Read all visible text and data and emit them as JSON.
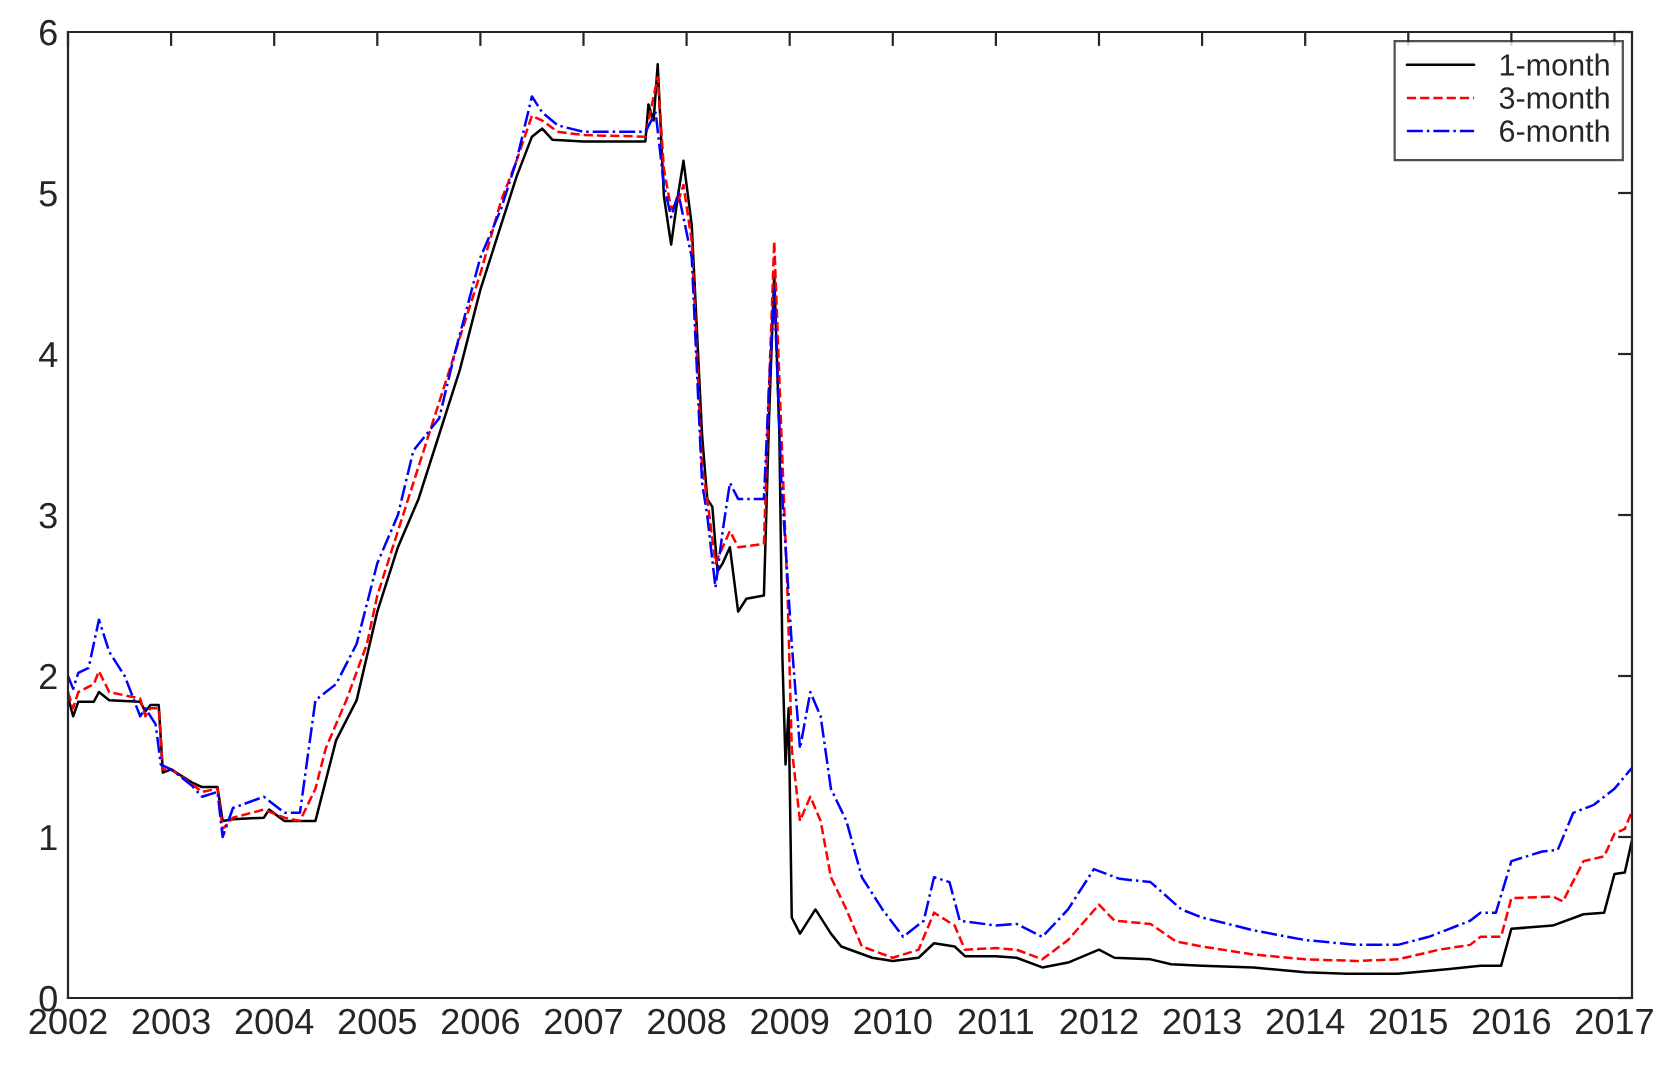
{
  "chart_data": {
    "type": "line",
    "xlim": [
      2002,
      2017.17
    ],
    "xticks": [
      2002,
      2003,
      2004,
      2005,
      2006,
      2007,
      2008,
      2009,
      2010,
      2011,
      2012,
      2013,
      2014,
      2015,
      2016,
      2017
    ],
    "ylim": [
      0,
      6
    ],
    "yticks": [
      0,
      1,
      2,
      3,
      4,
      5,
      6
    ],
    "grid": false,
    "legend": "top right",
    "marker": "none",
    "series": [
      {
        "name": "1-month",
        "color": "#000000",
        "line_style": "solid",
        "x": [
          2002.0,
          2002.05,
          2002.1,
          2002.25,
          2002.3,
          2002.4,
          2002.7,
          2002.75,
          2002.8,
          2002.88,
          2002.92,
          2003.0,
          2003.2,
          2003.3,
          2003.45,
          2003.5,
          2003.6,
          2003.9,
          2003.95,
          2004.1,
          2004.4,
          2004.5,
          2004.6,
          2004.8,
          2005.0,
          2005.2,
          2005.4,
          2005.6,
          2005.8,
          2006.0,
          2006.2,
          2006.35,
          2006.5,
          2006.6,
          2006.7,
          2007.0,
          2007.6,
          2007.63,
          2007.68,
          2007.72,
          2007.78,
          2007.85,
          2007.92,
          2007.97,
          2008.05,
          2008.15,
          2008.2,
          2008.25,
          2008.3,
          2008.35,
          2008.42,
          2008.5,
          2008.58,
          2008.75,
          2008.8,
          2008.85,
          2008.9,
          2008.93,
          2008.96,
          2008.99,
          2009.02,
          2009.1,
          2009.25,
          2009.4,
          2009.5,
          2009.8,
          2010.0,
          2010.25,
          2010.4,
          2010.6,
          2010.7,
          2011.0,
          2011.2,
          2011.45,
          2011.7,
          2012.0,
          2012.15,
          2012.5,
          2012.7,
          2013.0,
          2013.5,
          2014.0,
          2014.4,
          2014.9,
          2015.4,
          2015.7,
          2015.9,
          2016.0,
          2016.4,
          2016.7,
          2016.9,
          2017.0,
          2017.1,
          2017.17
        ],
        "values": [
          1.87,
          1.75,
          1.84,
          1.84,
          1.9,
          1.85,
          1.84,
          1.78,
          1.82,
          1.82,
          1.4,
          1.42,
          1.34,
          1.31,
          1.31,
          1.1,
          1.11,
          1.12,
          1.17,
          1.1,
          1.1,
          1.35,
          1.6,
          1.85,
          2.4,
          2.8,
          3.1,
          3.5,
          3.9,
          4.4,
          4.8,
          5.1,
          5.35,
          5.4,
          5.33,
          5.32,
          5.32,
          5.55,
          5.45,
          5.8,
          4.98,
          4.68,
          5.0,
          5.2,
          4.8,
          3.5,
          3.1,
          3.05,
          2.65,
          2.7,
          2.8,
          2.4,
          2.48,
          2.5,
          3.6,
          4.5,
          3.5,
          2.1,
          1.45,
          1.8,
          0.5,
          0.4,
          0.55,
          0.4,
          0.32,
          0.25,
          0.23,
          0.25,
          0.34,
          0.32,
          0.26,
          0.26,
          0.25,
          0.19,
          0.22,
          0.3,
          0.25,
          0.24,
          0.21,
          0.2,
          0.19,
          0.16,
          0.15,
          0.15,
          0.18,
          0.2,
          0.2,
          0.43,
          0.45,
          0.52,
          0.53,
          0.77,
          0.78,
          0.98
        ]
      },
      {
        "name": "3-month",
        "color": "#ff0000",
        "line_style": "dashed",
        "x": [
          2002.0,
          2002.05,
          2002.1,
          2002.25,
          2002.3,
          2002.4,
          2002.7,
          2002.75,
          2002.8,
          2002.88,
          2002.92,
          2003.0,
          2003.2,
          2003.3,
          2003.45,
          2003.5,
          2003.6,
          2003.9,
          2004.1,
          2004.25,
          2004.4,
          2004.5,
          2004.7,
          2004.9,
          2005.0,
          2005.2,
          2005.4,
          2005.6,
          2005.8,
          2006.0,
          2006.2,
          2006.35,
          2006.5,
          2006.6,
          2006.75,
          2007.0,
          2007.6,
          2007.68,
          2007.72,
          2007.78,
          2007.85,
          2007.92,
          2007.97,
          2008.05,
          2008.15,
          2008.2,
          2008.28,
          2008.35,
          2008.42,
          2008.5,
          2008.75,
          2008.8,
          2008.85,
          2008.92,
          2008.98,
          2009.02,
          2009.1,
          2009.2,
          2009.3,
          2009.4,
          2009.55,
          2009.7,
          2010.0,
          2010.25,
          2010.4,
          2010.6,
          2010.7,
          2011.0,
          2011.2,
          2011.45,
          2011.7,
          2012.0,
          2012.15,
          2012.5,
          2012.75,
          2013.0,
          2013.5,
          2014.0,
          2014.5,
          2014.9,
          2015.3,
          2015.6,
          2015.7,
          2015.9,
          2016.0,
          2016.4,
          2016.5,
          2016.7,
          2016.9,
          2017.0,
          2017.1,
          2017.17
        ],
        "values": [
          1.9,
          1.8,
          1.9,
          1.95,
          2.03,
          1.9,
          1.86,
          1.75,
          1.8,
          1.8,
          1.42,
          1.42,
          1.33,
          1.28,
          1.3,
          1.05,
          1.12,
          1.17,
          1.12,
          1.1,
          1.3,
          1.55,
          1.85,
          2.2,
          2.5,
          2.9,
          3.3,
          3.7,
          4.1,
          4.5,
          4.95,
          5.2,
          5.48,
          5.45,
          5.38,
          5.36,
          5.35,
          5.6,
          5.72,
          5.15,
          4.9,
          4.95,
          5.05,
          4.7,
          3.3,
          3.1,
          2.7,
          2.8,
          2.9,
          2.8,
          2.82,
          3.8,
          4.7,
          3.5,
          2.5,
          1.55,
          1.1,
          1.25,
          1.1,
          0.75,
          0.55,
          0.32,
          0.25,
          0.3,
          0.53,
          0.45,
          0.3,
          0.31,
          0.3,
          0.24,
          0.36,
          0.58,
          0.48,
          0.46,
          0.35,
          0.32,
          0.27,
          0.24,
          0.23,
          0.24,
          0.3,
          0.33,
          0.38,
          0.38,
          0.62,
          0.63,
          0.6,
          0.85,
          0.88,
          1.02,
          1.05,
          1.16
        ]
      },
      {
        "name": "6-month",
        "color": "#0000ff",
        "line_style": "dashdot",
        "x": [
          2002.0,
          2002.05,
          2002.1,
          2002.2,
          2002.3,
          2002.4,
          2002.55,
          2002.7,
          2002.75,
          2002.85,
          2002.9,
          2003.0,
          2003.2,
          2003.3,
          2003.45,
          2003.5,
          2003.6,
          2003.9,
          2004.1,
          2004.25,
          2004.4,
          2004.6,
          2004.8,
          2005.0,
          2005.2,
          2005.35,
          2005.6,
          2005.75,
          2006.0,
          2006.2,
          2006.35,
          2006.5,
          2006.6,
          2006.75,
          2007.0,
          2007.6,
          2007.7,
          2007.78,
          2007.85,
          2007.92,
          2008.05,
          2008.15,
          2008.2,
          2008.28,
          2008.35,
          2008.42,
          2008.5,
          2008.75,
          2008.8,
          2008.85,
          2008.92,
          2008.98,
          2009.02,
          2009.1,
          2009.2,
          2009.3,
          2009.4,
          2009.55,
          2009.7,
          2009.9,
          2010.1,
          2010.3,
          2010.4,
          2010.55,
          2010.65,
          2011.0,
          2011.2,
          2011.45,
          2011.7,
          2011.95,
          2012.2,
          2012.5,
          2012.8,
          2013.0,
          2013.5,
          2014.0,
          2014.5,
          2014.9,
          2015.2,
          2015.6,
          2015.7,
          2015.85,
          2016.0,
          2016.3,
          2016.45,
          2016.6,
          2016.8,
          2017.0,
          2017.17
        ],
        "values": [
          2.0,
          1.92,
          2.02,
          2.05,
          2.35,
          2.15,
          2.0,
          1.75,
          1.8,
          1.7,
          1.45,
          1.42,
          1.32,
          1.25,
          1.28,
          1.0,
          1.18,
          1.25,
          1.15,
          1.15,
          1.85,
          1.95,
          2.2,
          2.7,
          3.0,
          3.4,
          3.6,
          4.0,
          4.6,
          4.9,
          5.2,
          5.6,
          5.5,
          5.42,
          5.38,
          5.38,
          5.5,
          5.05,
          4.85,
          5.0,
          4.6,
          3.2,
          3.0,
          2.55,
          2.9,
          3.2,
          3.1,
          3.1,
          3.8,
          4.4,
          3.2,
          2.6,
          2.2,
          1.55,
          1.9,
          1.75,
          1.3,
          1.1,
          0.75,
          0.55,
          0.38,
          0.48,
          0.75,
          0.72,
          0.48,
          0.45,
          0.46,
          0.38,
          0.55,
          0.8,
          0.74,
          0.72,
          0.55,
          0.5,
          0.42,
          0.36,
          0.33,
          0.33,
          0.38,
          0.48,
          0.53,
          0.53,
          0.85,
          0.91,
          0.92,
          1.15,
          1.2,
          1.3,
          1.43
        ]
      }
    ]
  }
}
